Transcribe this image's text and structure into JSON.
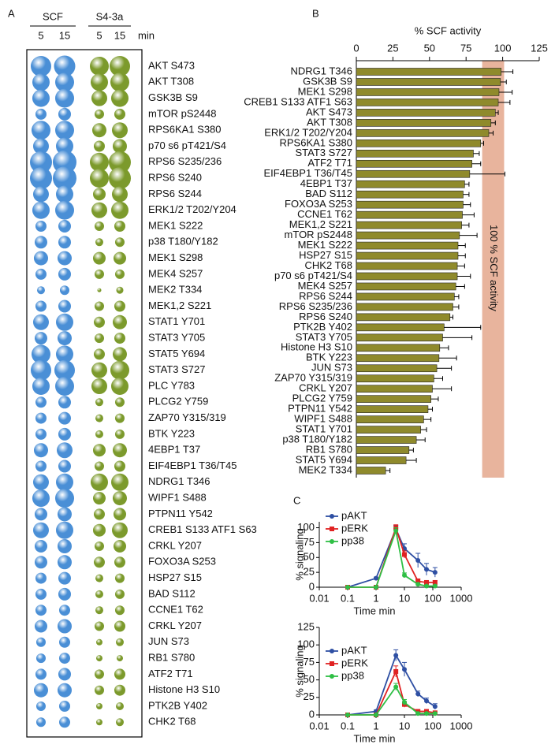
{
  "chart_data": [
    {
      "type": "bubble",
      "panel": "A",
      "unit": "min",
      "categories": [
        "AKT S473",
        "AKT T308",
        "GSK3B S9",
        "mTOR pS2448",
        "RPS6KA1 S380",
        "p70 s6 pT421/S4",
        "RPS6 S235/236",
        "RPS6 S240",
        "RPS6 S244",
        "ERK1/2 T202/Y204",
        "MEK1 S222",
        "p38 T180/Y182",
        "MEK1 S298",
        "MEK4 S257",
        "MEK2 T334",
        "MEK1,2 S221",
        "STAT1 Y701",
        "STAT3 Y705",
        "STAT5 Y694",
        "STAT3 S727",
        "PLC Y783",
        "PLCG2 Y759",
        "ZAP70 Y315/319",
        "BTK Y223",
        "4EBP1 T37",
        "EIF4EBP1 T36/T45",
        "NDRG1 T346",
        "WIPF1 S488",
        "PTPN11 Y542",
        "CREB1 S133 ATF1 S63",
        "CRKL Y207",
        "FOXO3A S253",
        "HSP27 S15",
        "BAD S112",
        "CCNE1 T62",
        "CRKL Y207",
        "JUN S73",
        "RB1 S780",
        "ATF2 T71",
        "Histone H3 S10",
        "PTK2B Y402",
        "CHK2 T68"
      ],
      "groups": [
        {
          "name": "SCF",
          "color": "#4a8fd6",
          "series": [
            {
              "name": "5",
              "values": [
                26,
                22,
                22,
                14,
                24,
                20,
                28,
                28,
                20,
                22,
                14,
                16,
                18,
                14,
                10,
                14,
                20,
                16,
                24,
                26,
                22,
                14,
                14,
                14,
                18,
                14,
                20,
                22,
                16,
                20,
                16,
                16,
                14,
                14,
                14,
                16,
                12,
                12,
                14,
                18,
                12,
                12
              ]
            },
            {
              "name": "15",
              "values": [
                27,
                24,
                24,
                16,
                24,
                22,
                30,
                30,
                22,
                24,
                16,
                16,
                18,
                16,
                12,
                16,
                22,
                18,
                22,
                26,
                24,
                16,
                16,
                16,
                20,
                16,
                22,
                24,
                18,
                22,
                18,
                18,
                16,
                16,
                14,
                18,
                14,
                14,
                16,
                18,
                14,
                14
              ]
            }
          ]
        },
        {
          "name": "S4-3a",
          "color": "#7c9a2c",
          "series": [
            {
              "name": "5",
              "values": [
                24,
                22,
                20,
                12,
                18,
                14,
                24,
                24,
                16,
                20,
                12,
                10,
                16,
                12,
                5,
                12,
                14,
                12,
                14,
                20,
                20,
                10,
                10,
                10,
                16,
                12,
                22,
                16,
                14,
                16,
                12,
                14,
                10,
                10,
                10,
                12,
                8,
                8,
                12,
                12,
                8,
                8
              ]
            },
            {
              "name": "15",
              "values": [
                26,
                24,
                22,
                14,
                20,
                18,
                28,
                28,
                20,
                22,
                14,
                12,
                16,
                12,
                9,
                14,
                18,
                14,
                18,
                24,
                22,
                12,
                12,
                12,
                18,
                14,
                22,
                18,
                16,
                20,
                16,
                14,
                12,
                12,
                12,
                14,
                10,
                8,
                14,
                14,
                10,
                10
              ]
            }
          ]
        }
      ]
    },
    {
      "type": "hbar",
      "panel": "B",
      "title": "% SCF activity",
      "color": "#8f8a2c",
      "categories": [
        "NDRG1 T346",
        "GSK3B S9",
        "MEK1  S298",
        "CREB1 S133 ATF1 S63",
        "AKT S473",
        "AKT T308",
        "ERK1/2 T202/Y204",
        "RPS6KA1 S380",
        "STAT3 S727",
        "ATF2 T71",
        "EIF4EBP1 T36/T45",
        "4EBP1 T37",
        "BAD S112",
        "FOXO3A S253",
        "CCNE1 T62",
        "MEK1,2 S221",
        "mTOR pS2448",
        "MEK1 S222",
        "HSP27 S15",
        "CHK2 T68",
        "p70 s6 pT421/S4",
        "MEK4 S257",
        "RPS6 S244",
        "RPS6 S235/236",
        "RPS6 S240",
        "PTK2B Y402",
        "STAT3 Y705",
        "Histone H3 S10",
        "BTK Y223",
        "JUN S73",
        "ZAP70 Y315/319",
        "CRKL Y207",
        "PLCG2 Y759",
        "PTPN11 Y542",
        "WIPF1 S488",
        "STAT1 Y701",
        "p38 T180/Y182",
        "RB1 S780",
        "STAT5 Y694",
        "MEK2 T334"
      ],
      "values": [
        99,
        98.5,
        97.5,
        97,
        95,
        92,
        90.5,
        85,
        80,
        79,
        77.5,
        74,
        73,
        73,
        72.5,
        72,
        70.5,
        69.5,
        69.5,
        69,
        69,
        68,
        67,
        66,
        64,
        60,
        59,
        57,
        56.5,
        55,
        53,
        52,
        51,
        49,
        46,
        44,
        41,
        36,
        34,
        20
      ],
      "errors": [
        8,
        4,
        9,
        8,
        2,
        3,
        3,
        2,
        4,
        6,
        24,
        3,
        4,
        5,
        8,
        5,
        12,
        5,
        5,
        5,
        9,
        6,
        3,
        4,
        2,
        25,
        20,
        6,
        12,
        10,
        6,
        13,
        5,
        3,
        5,
        4,
        6,
        3,
        7,
        3
      ],
      "xlim": [
        0,
        125
      ],
      "xticks": [
        0,
        25,
        50,
        75,
        100,
        125
      ],
      "annotation": {
        "text": "100 % SCF activity",
        "range": [
          86,
          101
        ],
        "color": "#e8b49d"
      }
    },
    {
      "type": "line",
      "panel": "C",
      "xlog": true,
      "xlabel": "Time min",
      "ylabel": "% signaling",
      "x": [
        0.1,
        1,
        5,
        10,
        30,
        60,
        120
      ],
      "xlim": [
        0.01,
        1000
      ],
      "xticks": [
        0.01,
        0.1,
        1,
        10,
        100,
        1000
      ],
      "ylim": [
        0,
        110
      ],
      "yticks": [
        0,
        25,
        50,
        75,
        100
      ],
      "series": [
        {
          "name": "pAKT",
          "color": "#2e4fa3",
          "marker": "circle",
          "values": [
            0,
            15,
            98,
            65,
            45,
            30,
            25
          ],
          "errors": [
            0,
            2,
            6,
            8,
            12,
            10,
            8
          ]
        },
        {
          "name": "pERK",
          "color": "#e02222",
          "marker": "square",
          "values": [
            0,
            0,
            100,
            55,
            10,
            8,
            8
          ],
          "errors": [
            0,
            0,
            5,
            6,
            4,
            3,
            3
          ]
        },
        {
          "name": "pp38",
          "color": "#2fbf45",
          "marker": "circle",
          "values": [
            0,
            0,
            95,
            20,
            5,
            2,
            2
          ],
          "errors": [
            0,
            0,
            5,
            4,
            2,
            1,
            1
          ]
        }
      ]
    },
    {
      "type": "line",
      "xlog": true,
      "xlabel": "Time min",
      "ylabel": "% signaling",
      "x": [
        0.1,
        1,
        5,
        10,
        30,
        60,
        120
      ],
      "xlim": [
        0.01,
        1000
      ],
      "xticks": [
        0.01,
        0.1,
        1,
        10,
        100,
        1000
      ],
      "ylim": [
        0,
        125
      ],
      "yticks": [
        0,
        25,
        50,
        75,
        100,
        125
      ],
      "series": [
        {
          "name": "pAKT",
          "color": "#2e4fa3",
          "marker": "circle",
          "values": [
            0,
            5,
            85,
            65,
            30,
            20,
            12
          ],
          "errors": [
            0,
            2,
            8,
            10,
            4,
            4,
            4
          ]
        },
        {
          "name": "pERK",
          "color": "#e02222",
          "marker": "square",
          "values": [
            0,
            0,
            62,
            15,
            5,
            5,
            3
          ],
          "errors": [
            0,
            0,
            8,
            4,
            2,
            2,
            1
          ]
        },
        {
          "name": "pp38",
          "color": "#2fbf45",
          "marker": "circle",
          "values": [
            0,
            0,
            40,
            18,
            2,
            2,
            2
          ],
          "errors": [
            0,
            0,
            5,
            4,
            1,
            1,
            1
          ]
        }
      ]
    }
  ]
}
